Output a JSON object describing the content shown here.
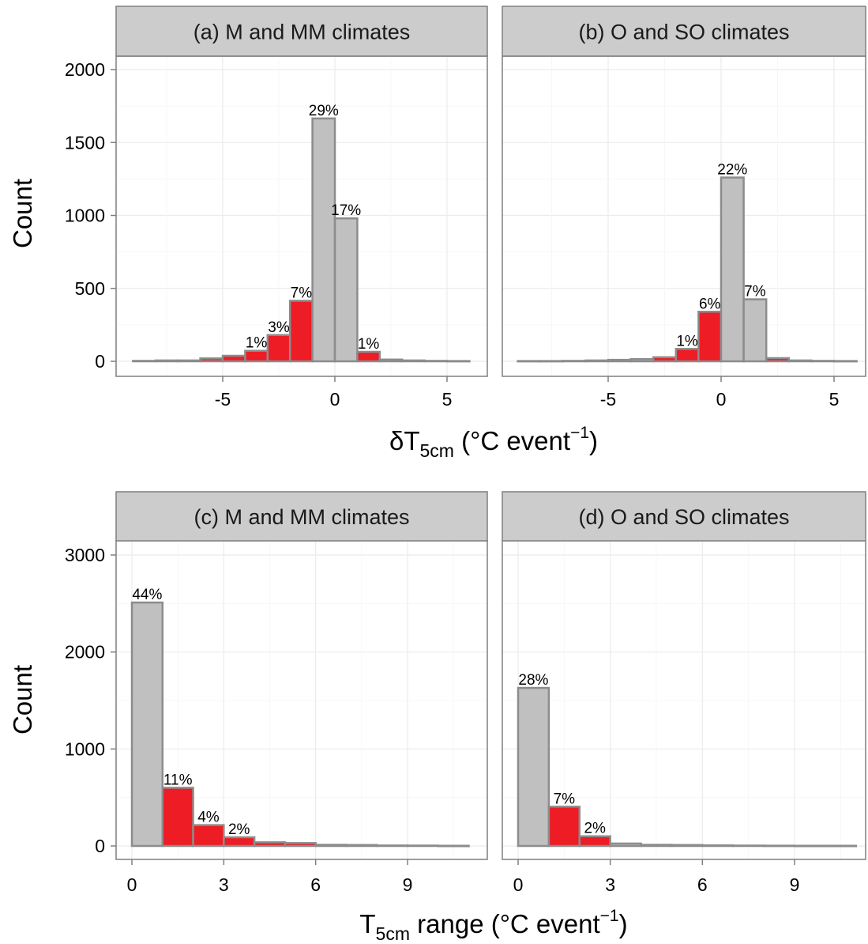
{
  "colors": {
    "negative_bar": "#ee1c25",
    "neutral_bar": "#c0c0c0",
    "strip_background": "#cccccc",
    "panel_border": "#7f7f7f"
  },
  "chart_data": [
    {
      "type": "bar",
      "strip": "(a) M and MM climates",
      "ylabel": "Count",
      "xlim": [
        -9,
        6
      ],
      "ylim": [
        0,
        2000
      ],
      "xticks": [
        "-5",
        "0",
        "5"
      ],
      "yticks": [
        "0",
        "500",
        "1000",
        "1500",
        "2000"
      ],
      "bins": [
        {
          "x0": -9,
          "x1": -8,
          "count": 3,
          "fill": "grey",
          "label": ""
        },
        {
          "x0": -8,
          "x1": -7,
          "count": 6,
          "fill": "grey",
          "label": ""
        },
        {
          "x0": -7,
          "x1": -6,
          "count": 6,
          "fill": "grey",
          "label": ""
        },
        {
          "x0": -6,
          "x1": -5,
          "count": 20,
          "fill": "red",
          "label": ""
        },
        {
          "x0": -5,
          "x1": -4,
          "count": 38,
          "fill": "red",
          "label": ""
        },
        {
          "x0": -4,
          "x1": -3,
          "count": 72,
          "fill": "red",
          "label": "1%"
        },
        {
          "x0": -3,
          "x1": -2,
          "count": 180,
          "fill": "red",
          "label": "3%"
        },
        {
          "x0": -2,
          "x1": -1,
          "count": 415,
          "fill": "red",
          "label": "7%"
        },
        {
          "x0": -1,
          "x1": 0,
          "count": 1665,
          "fill": "grey",
          "label": "29%"
        },
        {
          "x0": 0,
          "x1": 1,
          "count": 980,
          "fill": "grey",
          "label": "17%"
        },
        {
          "x0": 1,
          "x1": 2,
          "count": 65,
          "fill": "red",
          "label": "1%"
        },
        {
          "x0": 2,
          "x1": 3,
          "count": 12,
          "fill": "grey",
          "label": ""
        },
        {
          "x0": 3,
          "x1": 4,
          "count": 6,
          "fill": "grey",
          "label": ""
        },
        {
          "x0": 4,
          "x1": 5,
          "count": 3,
          "fill": "grey",
          "label": ""
        },
        {
          "x0": 5,
          "x1": 6,
          "count": 2,
          "fill": "grey",
          "label": ""
        }
      ]
    },
    {
      "type": "bar",
      "strip": "(b) O and SO climates",
      "ylabel": "",
      "xlim": [
        -9,
        6
      ],
      "ylim": [
        0,
        2000
      ],
      "xticks": [
        "-5",
        "0",
        "5"
      ],
      "yticks": [],
      "bins": [
        {
          "x0": -9,
          "x1": -8,
          "count": 2,
          "fill": "grey",
          "label": ""
        },
        {
          "x0": -8,
          "x1": -7,
          "count": 2,
          "fill": "grey",
          "label": ""
        },
        {
          "x0": -7,
          "x1": -6,
          "count": 3,
          "fill": "grey",
          "label": ""
        },
        {
          "x0": -6,
          "x1": -5,
          "count": 6,
          "fill": "grey",
          "label": ""
        },
        {
          "x0": -5,
          "x1": -4,
          "count": 10,
          "fill": "grey",
          "label": ""
        },
        {
          "x0": -4,
          "x1": -3,
          "count": 15,
          "fill": "grey",
          "label": ""
        },
        {
          "x0": -3,
          "x1": -2,
          "count": 28,
          "fill": "red",
          "label": ""
        },
        {
          "x0": -2,
          "x1": -1,
          "count": 85,
          "fill": "red",
          "label": "1%"
        },
        {
          "x0": -1,
          "x1": 0,
          "count": 340,
          "fill": "red",
          "label": "6%"
        },
        {
          "x0": 0,
          "x1": 1,
          "count": 1260,
          "fill": "grey",
          "label": "22%"
        },
        {
          "x0": 1,
          "x1": 2,
          "count": 425,
          "fill": "grey",
          "label": "7%"
        },
        {
          "x0": 2,
          "x1": 3,
          "count": 22,
          "fill": "red",
          "label": ""
        },
        {
          "x0": 3,
          "x1": 4,
          "count": 6,
          "fill": "grey",
          "label": ""
        },
        {
          "x0": 4,
          "x1": 5,
          "count": 3,
          "fill": "grey",
          "label": ""
        },
        {
          "x0": 5,
          "x1": 6,
          "count": 2,
          "fill": "grey",
          "label": ""
        }
      ]
    },
    {
      "type": "bar",
      "strip": "(c) M and MM climates",
      "ylabel": "Count",
      "xlim": [
        -0.5,
        11
      ],
      "ylim": [
        0,
        3000
      ],
      "xticks": [
        "0",
        "3",
        "6",
        "9"
      ],
      "yticks": [
        "0",
        "1000",
        "2000",
        "3000"
      ],
      "bins": [
        {
          "x0": 0,
          "x1": 1,
          "count": 2510,
          "fill": "grey",
          "label": "44%"
        },
        {
          "x0": 1,
          "x1": 2,
          "count": 600,
          "fill": "red",
          "label": "11%"
        },
        {
          "x0": 2,
          "x1": 3,
          "count": 215,
          "fill": "red",
          "label": "4%"
        },
        {
          "x0": 3,
          "x1": 4,
          "count": 90,
          "fill": "red",
          "label": "2%"
        },
        {
          "x0": 4,
          "x1": 5,
          "count": 38,
          "fill": "red",
          "label": ""
        },
        {
          "x0": 5,
          "x1": 6,
          "count": 30,
          "fill": "red",
          "label": ""
        },
        {
          "x0": 6,
          "x1": 7,
          "count": 12,
          "fill": "grey",
          "label": ""
        },
        {
          "x0": 7,
          "x1": 8,
          "count": 10,
          "fill": "grey",
          "label": ""
        },
        {
          "x0": 8,
          "x1": 9,
          "count": 5,
          "fill": "grey",
          "label": ""
        },
        {
          "x0": 9,
          "x1": 10,
          "count": 4,
          "fill": "grey",
          "label": ""
        },
        {
          "x0": 10,
          "x1": 11,
          "count": 2,
          "fill": "grey",
          "label": ""
        }
      ]
    },
    {
      "type": "bar",
      "strip": "(d) O and SO climates",
      "ylabel": "",
      "xlim": [
        -0.5,
        11
      ],
      "ylim": [
        0,
        3000
      ],
      "xticks": [
        "0",
        "3",
        "6",
        "9"
      ],
      "yticks": [],
      "bins": [
        {
          "x0": 0,
          "x1": 1,
          "count": 1630,
          "fill": "grey",
          "label": "28%"
        },
        {
          "x0": 1,
          "x1": 2,
          "count": 405,
          "fill": "red",
          "label": "7%"
        },
        {
          "x0": 2,
          "x1": 3,
          "count": 100,
          "fill": "red",
          "label": "2%"
        },
        {
          "x0": 3,
          "x1": 4,
          "count": 25,
          "fill": "grey",
          "label": ""
        },
        {
          "x0": 4,
          "x1": 5,
          "count": 12,
          "fill": "grey",
          "label": ""
        },
        {
          "x0": 5,
          "x1": 6,
          "count": 10,
          "fill": "grey",
          "label": ""
        },
        {
          "x0": 6,
          "x1": 7,
          "count": 6,
          "fill": "grey",
          "label": ""
        },
        {
          "x0": 7,
          "x1": 8,
          "count": 4,
          "fill": "grey",
          "label": ""
        },
        {
          "x0": 8,
          "x1": 9,
          "count": 3,
          "fill": "grey",
          "label": ""
        },
        {
          "x0": 9,
          "x1": 10,
          "count": 2,
          "fill": "grey",
          "label": ""
        },
        {
          "x0": 10,
          "x1": 11,
          "count": 2,
          "fill": "grey",
          "label": ""
        }
      ]
    }
  ],
  "axis_titles": {
    "top_xlabel_main": "δT",
    "top_xlabel_sub": "5cm",
    "top_xlabel_rest": " (°C event",
    "top_xlabel_sup": "−1",
    "top_xlabel_end": ")",
    "bottom_xlabel_main": "T",
    "bottom_xlabel_sub": "5cm",
    "bottom_xlabel_rest": " range (°C event",
    "bottom_xlabel_sup": "−1",
    "bottom_xlabel_end": ")"
  }
}
